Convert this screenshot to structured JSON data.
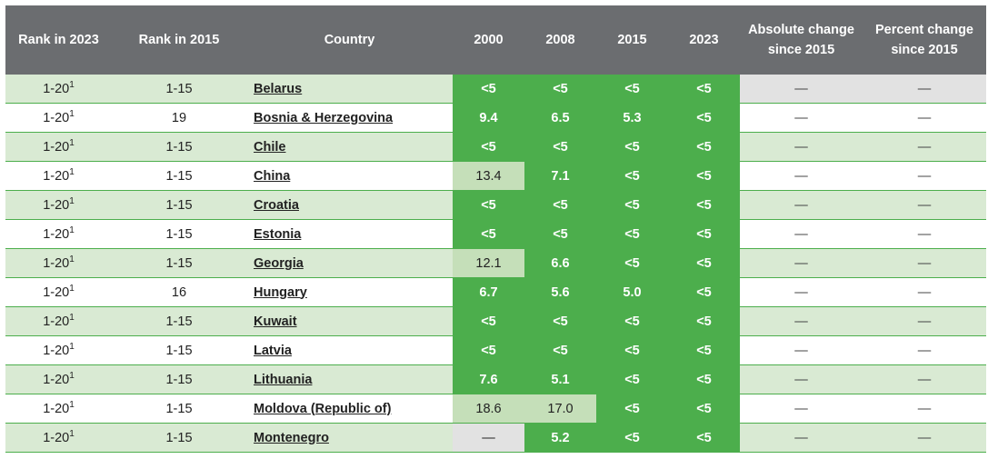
{
  "headers": {
    "rank_2023": "Rank in 2023",
    "rank_2015": "Rank in 2015",
    "country": "Country",
    "y2000": "2000",
    "y2008": "2008",
    "y2015": "2015",
    "y2023": "2023",
    "abs_change": "Absolute change since 2015",
    "pct_change": "Percent change since 2015"
  },
  "colors": {
    "header_bg": "#6b6d70",
    "green_cell": "#4cae4c",
    "light_green_cell": "#c5dfb9",
    "row_tint": "#d9ead3",
    "missing_cell": "#e2e2e2"
  },
  "rows": [
    {
      "rank_2023": "1-20",
      "footnote": "1",
      "rank_2015": "1-15",
      "country": "Belarus",
      "y2000": {
        "v": "<5",
        "s": "green"
      },
      "y2008": {
        "v": "<5",
        "s": "green"
      },
      "y2015": {
        "v": "<5",
        "s": "green"
      },
      "y2023": {
        "v": "<5",
        "s": "green"
      },
      "abs": "—",
      "pct": "—",
      "abs_gray": true
    },
    {
      "rank_2023": "1-20",
      "footnote": "1",
      "rank_2015": "19",
      "country": "Bosnia & Herzegovina",
      "y2000": {
        "v": "9.4",
        "s": "green"
      },
      "y2008": {
        "v": "6.5",
        "s": "green"
      },
      "y2015": {
        "v": "5.3",
        "s": "green"
      },
      "y2023": {
        "v": "<5",
        "s": "green"
      },
      "abs": "—",
      "pct": "—"
    },
    {
      "rank_2023": "1-20",
      "footnote": "1",
      "rank_2015": "1-15",
      "country": "Chile",
      "y2000": {
        "v": "<5",
        "s": "green"
      },
      "y2008": {
        "v": "<5",
        "s": "green"
      },
      "y2015": {
        "v": "<5",
        "s": "green"
      },
      "y2023": {
        "v": "<5",
        "s": "green"
      },
      "abs": "—",
      "pct": "—"
    },
    {
      "rank_2023": "1-20",
      "footnote": "1",
      "rank_2015": "1-15",
      "country": "China",
      "y2000": {
        "v": "13.4",
        "s": "light"
      },
      "y2008": {
        "v": "7.1",
        "s": "green"
      },
      "y2015": {
        "v": "<5",
        "s": "green"
      },
      "y2023": {
        "v": "<5",
        "s": "green"
      },
      "abs": "—",
      "pct": "—"
    },
    {
      "rank_2023": "1-20",
      "footnote": "1",
      "rank_2015": "1-15",
      "country": "Croatia",
      "y2000": {
        "v": "<5",
        "s": "green"
      },
      "y2008": {
        "v": "<5",
        "s": "green"
      },
      "y2015": {
        "v": "<5",
        "s": "green"
      },
      "y2023": {
        "v": "<5",
        "s": "green"
      },
      "abs": "—",
      "pct": "—"
    },
    {
      "rank_2023": "1-20",
      "footnote": "1",
      "rank_2015": "1-15",
      "country": "Estonia",
      "y2000": {
        "v": "<5",
        "s": "green"
      },
      "y2008": {
        "v": "<5",
        "s": "green"
      },
      "y2015": {
        "v": "<5",
        "s": "green"
      },
      "y2023": {
        "v": "<5",
        "s": "green"
      },
      "abs": "—",
      "pct": "—"
    },
    {
      "rank_2023": "1-20",
      "footnote": "1",
      "rank_2015": "1-15",
      "country": "Georgia",
      "y2000": {
        "v": "12.1",
        "s": "light"
      },
      "y2008": {
        "v": "6.6",
        "s": "green"
      },
      "y2015": {
        "v": "<5",
        "s": "green"
      },
      "y2023": {
        "v": "<5",
        "s": "green"
      },
      "abs": "—",
      "pct": "—"
    },
    {
      "rank_2023": "1-20",
      "footnote": "1",
      "rank_2015": "16",
      "country": "Hungary",
      "y2000": {
        "v": "6.7",
        "s": "green"
      },
      "y2008": {
        "v": "5.6",
        "s": "green"
      },
      "y2015": {
        "v": "5.0",
        "s": "green"
      },
      "y2023": {
        "v": "<5",
        "s": "green"
      },
      "abs": "—",
      "pct": "—"
    },
    {
      "rank_2023": "1-20",
      "footnote": "1",
      "rank_2015": "1-15",
      "country": "Kuwait",
      "y2000": {
        "v": "<5",
        "s": "green"
      },
      "y2008": {
        "v": "<5",
        "s": "green"
      },
      "y2015": {
        "v": "<5",
        "s": "green"
      },
      "y2023": {
        "v": "<5",
        "s": "green"
      },
      "abs": "—",
      "pct": "—"
    },
    {
      "rank_2023": "1-20",
      "footnote": "1",
      "rank_2015": "1-15",
      "country": "Latvia",
      "y2000": {
        "v": "<5",
        "s": "green"
      },
      "y2008": {
        "v": "<5",
        "s": "green"
      },
      "y2015": {
        "v": "<5",
        "s": "green"
      },
      "y2023": {
        "v": "<5",
        "s": "green"
      },
      "abs": "—",
      "pct": "—"
    },
    {
      "rank_2023": "1-20",
      "footnote": "1",
      "rank_2015": "1-15",
      "country": "Lithuania",
      "y2000": {
        "v": "7.6",
        "s": "green"
      },
      "y2008": {
        "v": "5.1",
        "s": "green"
      },
      "y2015": {
        "v": "<5",
        "s": "green"
      },
      "y2023": {
        "v": "<5",
        "s": "green"
      },
      "abs": "—",
      "pct": "—"
    },
    {
      "rank_2023": "1-20",
      "footnote": "1",
      "rank_2015": "1-15",
      "country": "Moldova (Republic of)",
      "y2000": {
        "v": "18.6",
        "s": "light"
      },
      "y2008": {
        "v": "17.0",
        "s": "light"
      },
      "y2015": {
        "v": "<5",
        "s": "green"
      },
      "y2023": {
        "v": "<5",
        "s": "green"
      },
      "abs": "—",
      "pct": "—"
    },
    {
      "rank_2023": "1-20",
      "footnote": "1",
      "rank_2015": "1-15",
      "country": "Montenegro",
      "y2000": {
        "v": "—",
        "s": "gray"
      },
      "y2008": {
        "v": "5.2",
        "s": "green"
      },
      "y2015": {
        "v": "<5",
        "s": "green"
      },
      "y2023": {
        "v": "<5",
        "s": "green"
      },
      "abs": "—",
      "pct": "—"
    }
  ]
}
